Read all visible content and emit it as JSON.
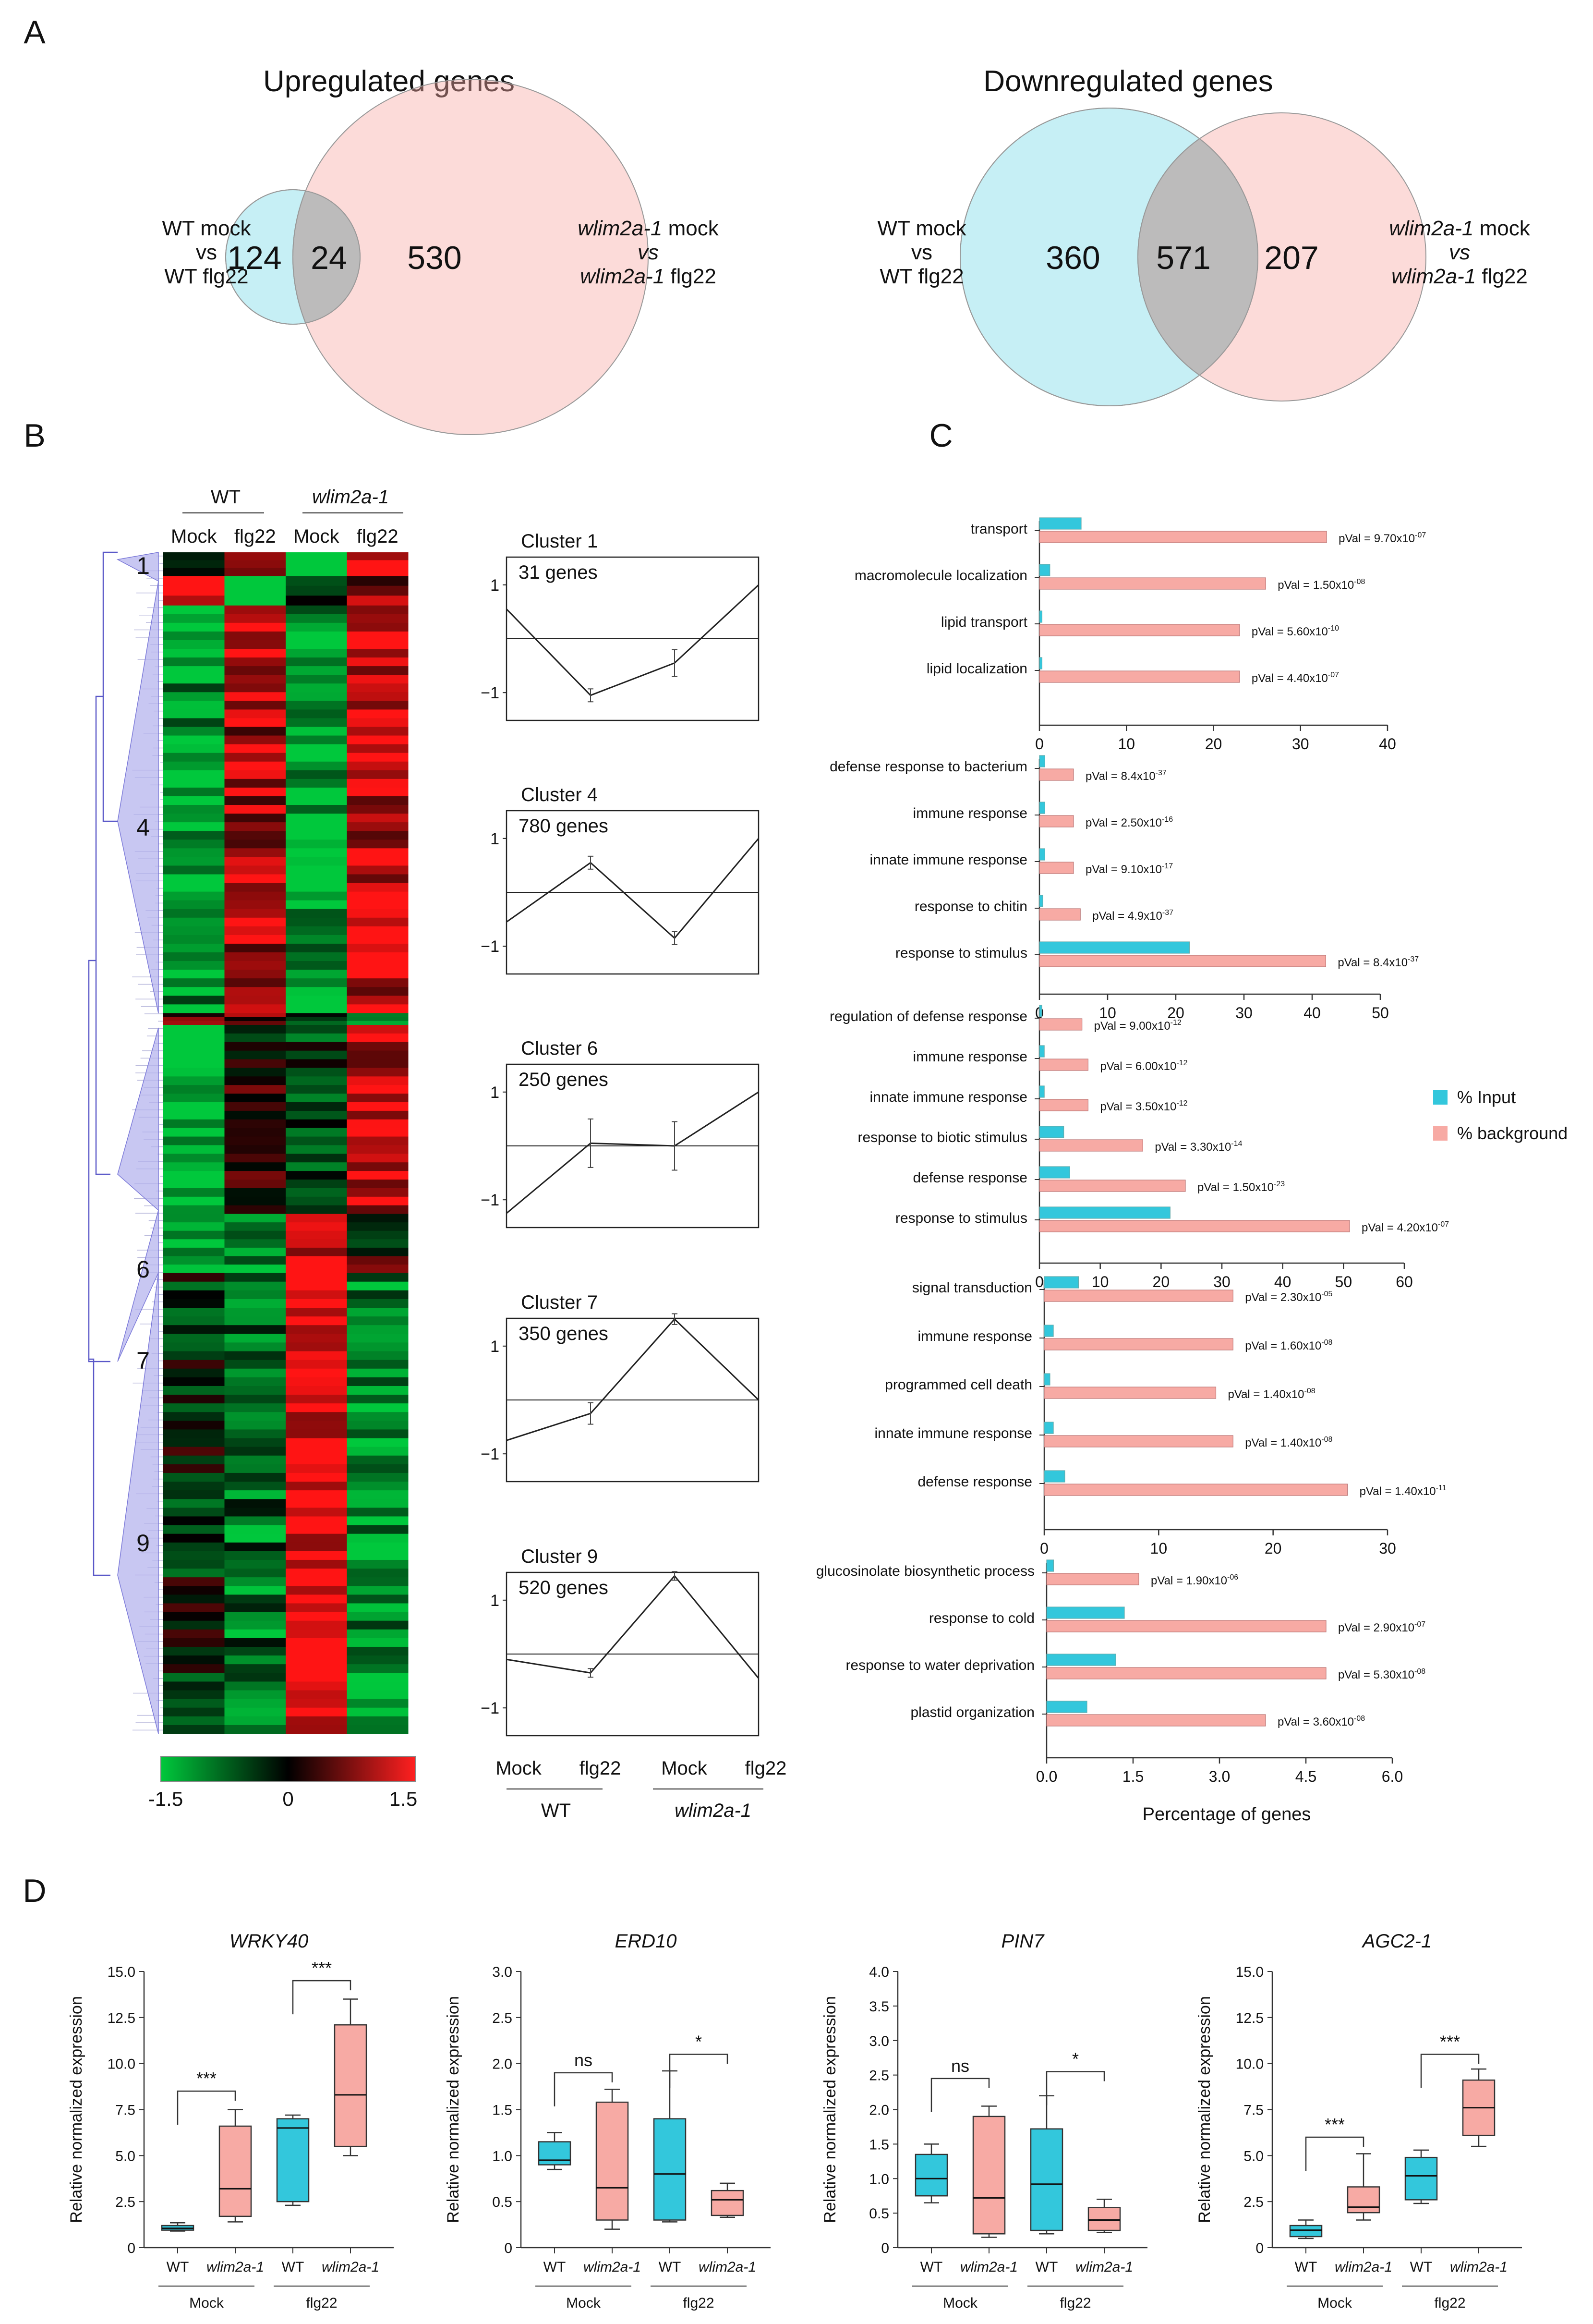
{
  "chart_data": {
    "type": "figure",
    "panels": {
      "A": {
        "label": "A",
        "type": "venn",
        "venns": [
          {
            "title": "Upregulated genes",
            "left_label": [
              "WT mock",
              "vs",
              "WT flg22"
            ],
            "right_label": [
              [
                {
                  "t": "wlim2a-1",
                  "i": true
                },
                {
                  "t": " mock",
                  "i": false
                }
              ],
              [
                {
                  "t": "vs",
                  "i": true
                }
              ],
              [
                {
                  "t": "wlim2a-1",
                  "i": true
                },
                {
                  "t": " flg22",
                  "i": false
                }
              ]
            ],
            "left_only": "124",
            "overlap": "24",
            "right_only": "530"
          },
          {
            "title": "Downregulated genes",
            "left_label": [
              "WT mock",
              "vs",
              "WT flg22"
            ],
            "right_label": [
              [
                {
                  "t": "wlim2a-1",
                  "i": true
                },
                {
                  "t": " mock",
                  "i": false
                }
              ],
              [
                {
                  "t": "vs",
                  "i": true
                }
              ],
              [
                {
                  "t": "wlim2a-1",
                  "i": true
                },
                {
                  "t": " flg22",
                  "i": false
                }
              ]
            ],
            "left_only": "360",
            "overlap": "571",
            "right_only": "207"
          }
        ]
      },
      "B": {
        "label": "B",
        "type": "heatmap",
        "group_headers": [
          {
            "t": "WT",
            "i": false
          },
          {
            "t": "wlim2a-1",
            "i": true
          }
        ],
        "columns": [
          "Mock",
          "flg22",
          "Mock",
          "flg22"
        ],
        "cluster_labels": [
          "1",
          "4",
          "6",
          "7",
          "9"
        ],
        "colorbar": {
          "min": "-1.5",
          "mid": "0",
          "max": "1.5",
          "colors": [
            "#00c83c",
            "#000000",
            "#ff2020"
          ]
        },
        "profiles": [
          {
            "title": "Cluster 1",
            "genes": "31 genes",
            "values": [
              0.55,
              -1.05,
              -0.45,
              1.0
            ],
            "err": [
              0,
              0.12,
              0.25,
              0
            ]
          },
          {
            "title": "Cluster 4",
            "genes": "780 genes",
            "values": [
              -0.55,
              0.55,
              -0.85,
              1.0
            ],
            "err": [
              0,
              0.12,
              0.12,
              0
            ]
          },
          {
            "title": "Cluster 6",
            "genes": "250 genes",
            "values": [
              -1.25,
              0.05,
              0.0,
              1.0
            ],
            "err": [
              0,
              0.45,
              0.45,
              0
            ]
          },
          {
            "title": "Cluster 7",
            "genes": "350 genes",
            "values": [
              -0.75,
              -0.25,
              1.5,
              0.0
            ],
            "err": [
              0,
              0.2,
              0.1,
              0
            ]
          },
          {
            "title": "Cluster 9",
            "genes": "520 genes",
            "values": [
              -0.1,
              -0.35,
              1.45,
              -0.45
            ],
            "err": [
              0,
              0.08,
              0.08,
              0
            ]
          }
        ],
        "profile_yticks": [
          "1",
          "−1"
        ],
        "profile_xlabels": [
          "Mock",
          "flg22",
          "Mock",
          "flg22"
        ],
        "profile_groups": [
          {
            "t": "WT",
            "i": false
          },
          {
            "t": "wlim2a-1",
            "i": true
          }
        ]
      },
      "C": {
        "label": "C",
        "type": "bar",
        "orientation": "horizontal",
        "xlabel": "Percentage of genes",
        "legend": [
          {
            "name": "% Input",
            "color": "#33c7dc"
          },
          {
            "name": "% background",
            "color": "#f7aaa4"
          }
        ],
        "groups": [
          {
            "xmax": 40,
            "ticks": [
              "0",
              "10",
              "20",
              "30",
              "40"
            ],
            "rows": [
              {
                "term": "transport",
                "input": 4.8,
                "background": 33,
                "p": "9.70x10",
                "exp": "-07"
              },
              {
                "term": "macromolecule localization",
                "input": 1.2,
                "background": 26,
                "p": "1.50x10",
                "exp": "-08"
              },
              {
                "term": "lipid transport",
                "input": 0.3,
                "background": 23,
                "p": "5.60x10",
                "exp": "-10"
              },
              {
                "term": "lipid localization",
                "input": 0.3,
                "background": 23,
                "p": "4.40x10",
                "exp": "-07"
              }
            ]
          },
          {
            "xmax": 50,
            "ticks": [
              "0",
              "10",
              "20",
              "30",
              "40",
              "50"
            ],
            "rows": [
              {
                "term": "defense response to bacterium",
                "input": 0.8,
                "background": 5,
                "p": "8.4x10",
                "exp": "-37"
              },
              {
                "term": "immune response",
                "input": 0.8,
                "background": 5,
                "p": "2.50x10",
                "exp": "-16"
              },
              {
                "term": "innate immune response",
                "input": 0.8,
                "background": 5,
                "p": "9.10x10",
                "exp": "-17"
              },
              {
                "term": "response to chitin",
                "input": 0.5,
                "background": 6,
                "p": "4.9x10",
                "exp": "-37"
              },
              {
                "term": "response to stimulus",
                "input": 22,
                "background": 42,
                "p": "8.4x10",
                "exp": "-37"
              }
            ]
          },
          {
            "xmax": 60,
            "ticks": [
              "0",
              "10",
              "20",
              "30",
              "40",
              "50",
              "60"
            ],
            "rows": [
              {
                "term": "regulation of defense response",
                "input": 0.4,
                "background": 7,
                "p": "9.00x10",
                "exp": "-12"
              },
              {
                "term": "immune response",
                "input": 0.8,
                "background": 8,
                "p": "6.00x10",
                "exp": "-12"
              },
              {
                "term": "innate immune response",
                "input": 0.8,
                "background": 8,
                "p": "3.50x10",
                "exp": "-12"
              },
              {
                "term": "response to biotic stimulus",
                "input": 4,
                "background": 17,
                "p": "3.30x10",
                "exp": "-14"
              },
              {
                "term": "defense response",
                "input": 5,
                "background": 24,
                "p": "1.50x10",
                "exp": "-23"
              },
              {
                "term": "response to stimulus",
                "input": 21.5,
                "background": 51,
                "p": "4.20x10",
                "exp": "-07"
              }
            ]
          },
          {
            "xmax": 30,
            "ticks": [
              "0",
              "10",
              "20",
              "30"
            ],
            "rows": [
              {
                "term": "signal transduction",
                "input": 3,
                "background": 16.5,
                "p": "2.30x10",
                "exp": "-05"
              },
              {
                "term": "immune response",
                "input": 0.8,
                "background": 16.5,
                "p": "1.60x10",
                "exp": "-08"
              },
              {
                "term": "programmed cell death",
                "input": 0.5,
                "background": 15,
                "p": "1.40x10",
                "exp": "-08"
              },
              {
                "term": "innate immune response",
                "input": 0.8,
                "background": 16.5,
                "p": "1.40x10",
                "exp": "-08"
              },
              {
                "term": "defense response",
                "input": 1.8,
                "background": 26.5,
                "p": "1.40x10",
                "exp": "-11"
              }
            ]
          },
          {
            "xmax": 6,
            "ticks": [
              "0.0",
              "1.5",
              "3.0",
              "4.5",
              "6.0"
            ],
            "rows": [
              {
                "term": "glucosinolate biosynthetic process",
                "input": 0.12,
                "background": 1.6,
                "p": "1.90x10",
                "exp": "-06"
              },
              {
                "term": "response to cold",
                "input": 1.35,
                "background": 4.85,
                "p": "2.90x10",
                "exp": "-07"
              },
              {
                "term": "response to water deprivation",
                "input": 1.2,
                "background": 4.85,
                "p": "5.30x10",
                "exp": "-08"
              },
              {
                "term": "plastid organization",
                "input": 0.7,
                "background": 3.8,
                "p": "3.60x10",
                "exp": "-08"
              }
            ]
          }
        ]
      },
      "D": {
        "label": "D",
        "type": "boxplot",
        "ylabel": "Relative normalized expression",
        "xlabels": [
          {
            "t": "WT",
            "i": false
          },
          {
            "t": "wlim2a-1",
            "i": true
          },
          {
            "t": "WT",
            "i": false
          },
          {
            "t": "wlim2a-1",
            "i": true
          }
        ],
        "conditions": [
          "Mock",
          "flg22"
        ],
        "colors": [
          "#33c7dc",
          "#f7aaa4",
          "#33c7dc",
          "#f7aaa4"
        ],
        "plots": [
          {
            "gene": "WRKY40",
            "ylim": [
              0,
              15
            ],
            "ticks": [
              "0",
              "2.5",
              "5.0",
              "7.5",
              "10.0",
              "12.5",
              "15.0"
            ],
            "boxes": [
              [
                0.9,
                0.95,
                1.05,
                1.2,
                1.35
              ],
              [
                1.4,
                1.7,
                3.2,
                6.6,
                7.5
              ],
              [
                2.3,
                2.5,
                6.5,
                7.0,
                7.2
              ],
              [
                5.0,
                5.5,
                8.3,
                12.1,
                13.5
              ]
            ],
            "sig": [
              {
                "a": 0,
                "b": 1,
                "y": 8.5,
                "t": "***"
              },
              {
                "a": 2,
                "b": 3,
                "y": 14.5,
                "t": "***"
              }
            ]
          },
          {
            "gene": "ERD10",
            "ylim": [
              0,
              3
            ],
            "ticks": [
              "0",
              "0.5",
              "1.0",
              "1.5",
              "2.0",
              "2.5",
              "3.0"
            ],
            "boxes": [
              [
                0.85,
                0.9,
                0.95,
                1.15,
                1.25
              ],
              [
                0.2,
                0.3,
                0.65,
                1.58,
                1.72
              ],
              [
                0.28,
                0.3,
                0.8,
                1.4,
                1.92
              ],
              [
                0.33,
                0.35,
                0.52,
                0.62,
                0.7
              ]
            ],
            "sig": [
              {
                "a": 0,
                "b": 1,
                "y": 1.9,
                "t": "ns"
              },
              {
                "a": 2,
                "b": 3,
                "y": 2.1,
                "t": "*"
              }
            ]
          },
          {
            "gene": "PIN7",
            "ylim": [
              0,
              4
            ],
            "ticks": [
              "0",
              "0.5",
              "1.0",
              "1.5",
              "2.0",
              "2.5",
              "3.0",
              "3.5",
              "4.0"
            ],
            "boxes": [
              [
                0.65,
                0.75,
                1.0,
                1.35,
                1.5
              ],
              [
                0.15,
                0.2,
                0.72,
                1.9,
                2.05
              ],
              [
                0.2,
                0.25,
                0.92,
                1.72,
                2.2
              ],
              [
                0.22,
                0.25,
                0.4,
                0.58,
                0.7
              ]
            ],
            "sig": [
              {
                "a": 0,
                "b": 1,
                "y": 2.45,
                "t": "ns"
              },
              {
                "a": 2,
                "b": 3,
                "y": 2.55,
                "t": "*"
              }
            ]
          },
          {
            "gene": "AGC2-1",
            "ylim": [
              0,
              15
            ],
            "ticks": [
              "0",
              "2.5",
              "5.0",
              "7.5",
              "10.0",
              "12.5",
              "15.0"
            ],
            "boxes": [
              [
                0.5,
                0.6,
                0.95,
                1.2,
                1.5
              ],
              [
                1.5,
                1.9,
                2.2,
                3.3,
                5.1
              ],
              [
                2.4,
                2.6,
                3.9,
                4.9,
                5.3
              ],
              [
                5.5,
                6.1,
                7.6,
                9.1,
                9.7
              ]
            ],
            "sig": [
              {
                "a": 0,
                "b": 1,
                "y": 6.0,
                "t": "***"
              },
              {
                "a": 2,
                "b": 3,
                "y": 10.5,
                "t": "***"
              }
            ]
          }
        ]
      }
    }
  }
}
